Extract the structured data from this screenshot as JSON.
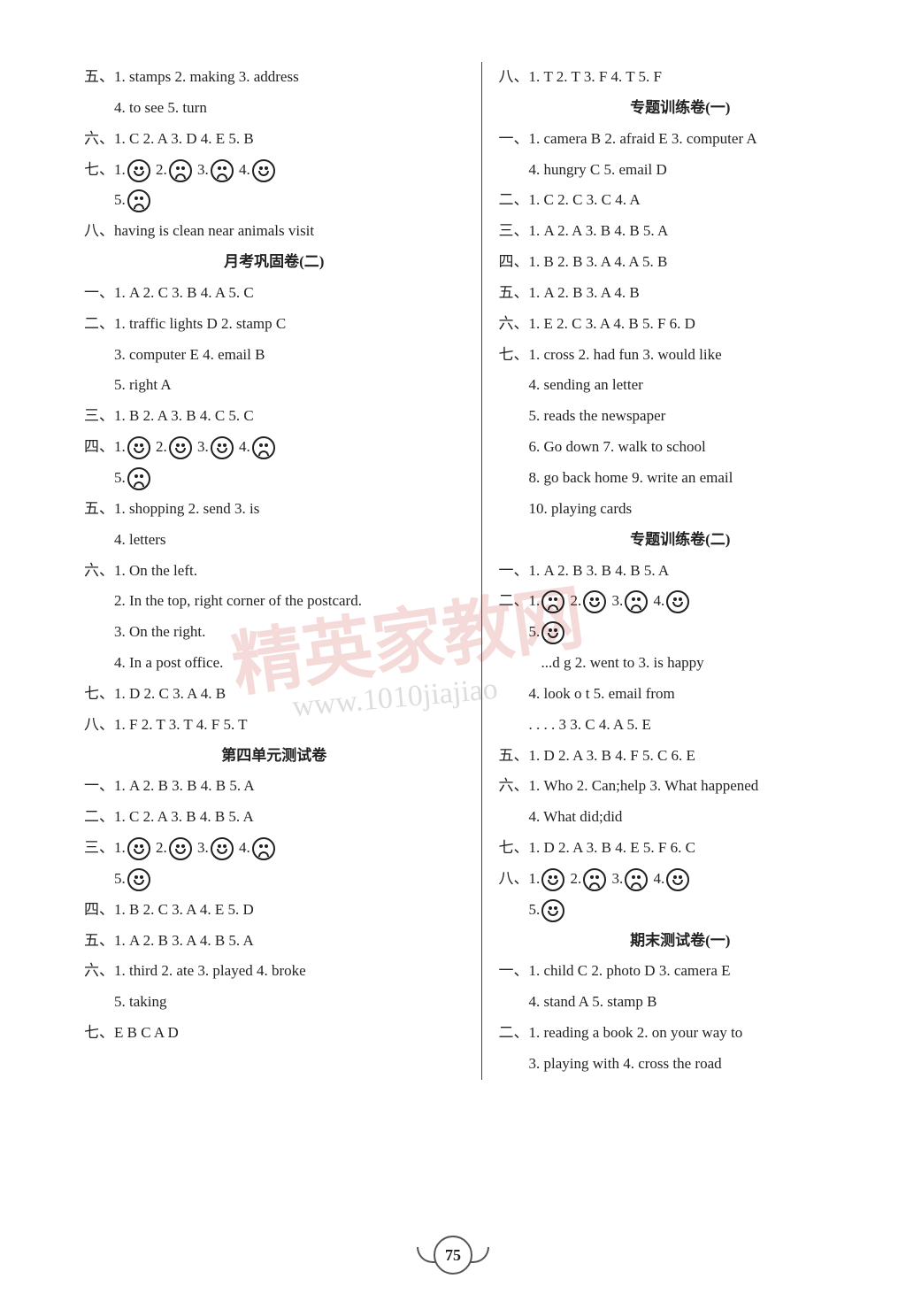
{
  "page_number": "75",
  "watermark_text": "精英家教网",
  "watermark_url": "www.1010jiajiao",
  "faces": {
    "smile": "smile",
    "sad": "sad"
  },
  "left": {
    "l1": "五、1. stamps   2. making   3. address",
    "l2": "4. to see   5. turn",
    "l3": "六、1. C   2. A   3. D   4. E   5. B",
    "l4a": "七、1.",
    "l4b": "  2.",
    "l4c": "  3.",
    "l4d": "  4.",
    "l5a": "5.",
    "l6": "八、having   is   clean   near   animals   visit",
    "h1": "月考巩固卷(二)",
    "l7": "一、1. A   2. C   3. B   4. A   5. C",
    "l8": "二、1. traffic   lights   D   2. stamp   C",
    "l9": "3. computer   E   4. email   B",
    "l10": "5. right   A",
    "l11": "三、1. B   2. A   3. B   4. C   5. C",
    "l12a": "四、1.",
    "l12b": "  2.",
    "l12c": "  3.",
    "l12d": "  4.",
    "l13a": "5.",
    "l14": "五、1. shopping   2. send   3. is",
    "l15": "4. letters",
    "l16": "六、1. On the left.",
    "l17": "2. In the top, right corner of the postcard.",
    "l18": "3. On the right.",
    "l19": "4. In a post office.",
    "l20": "七、1. D   2. C   3. A   4. B",
    "l21": "八、1. F   2. T   3. T   4. F   5. T",
    "h2": "第四单元测试卷",
    "l22": "一、1. A   2. B   3. B   4. B   5. A",
    "l23": "二、1. C   2. A   3. B   4. B   5. A",
    "l24a": "三、1.",
    "l24b": "  2.",
    "l24c": "  3.",
    "l24d": "  4.",
    "l25a": "5.",
    "l26": "四、1. B   2. C   3. A   4. E   5. D",
    "l27": "五、1. A   2. B   3. A   4. B   5. A",
    "l28": "六、1. third   2. ate   3. played   4. broke",
    "l29": "5. taking",
    "l30": "七、E   B   C   A   D"
  },
  "right": {
    "r1": "八、1. T   2. T   3. F   4. T   5. F",
    "h1": "专题训练卷(一)",
    "r2": "一、1. camera B   2. afraid E   3. computer A",
    "r3": "4. hungry C   5. email D",
    "r4": "二、1. C   2. C   3. C   4. A",
    "r5": "三、1. A   2. A   3. B   4. B   5. A",
    "r6": "四、1. B   2. B   3. A   4. A   5. B",
    "r7": "五、1. A   2. B   3. A   4. B",
    "r8": "六、1. E   2. C   3. A   4. B   5. F   6. D",
    "r9": "七、1. cross   2. had fun   3. would like",
    "r10": "4. sending an letter",
    "r11": "5. reads the newspaper",
    "r12": "6. Go down   7. walk to school",
    "r13": "8. go back home   9. write an email",
    "r14": "10. playing cards",
    "h2": "专题训练卷(二)",
    "r15": "一、1. A   2. B   3. B   4. B   5. A",
    "r16a": "二、1.",
    "r16b": "  2.",
    "r16c": "  3.",
    "r16d": "  4.",
    "r17a": "5.",
    "r18": "...d  g   2. went to   3. is happy",
    "r19": "4. look o t   5. email from",
    "r20": ". . .     . 3   3. C   4. A   5. E",
    "r21": "五、1. D   2. A   3. B   4. F   5. C   6. E",
    "r22": "六、1. Who   2. Can;help   3. What happened",
    "r23": "4. What did;did",
    "r24": "七、1. D   2. A   3. B   4. E   5. F   6. C",
    "r25a": "八、1.",
    "r25b": "  2.",
    "r25c": "  3.",
    "r25d": "  4.",
    "r26a": "5.",
    "h3": "期末测试卷(一)",
    "r27": "一、1. child C   2. photo D   3. camera E",
    "r28": "4. stand A   5. stamp B",
    "r29": "二、1. reading a book   2. on your way to",
    "r30": "3. playing with   4. cross the road"
  }
}
